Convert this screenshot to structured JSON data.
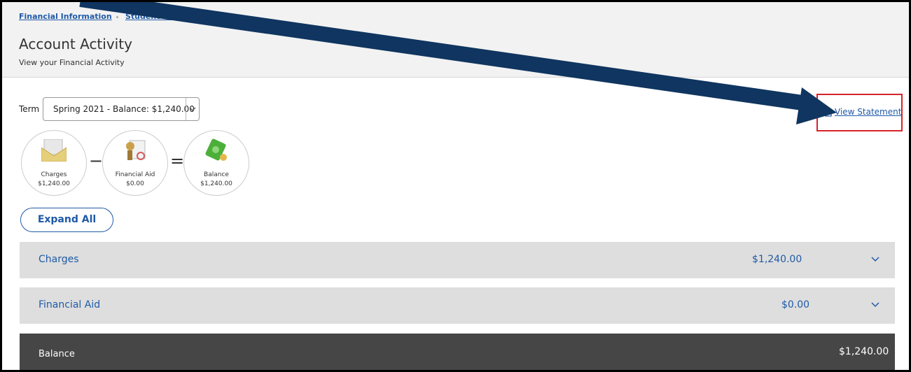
{
  "breadcrumb": [
    "Financial Information",
    "Student Finance"
  ],
  "header": {
    "title": "Account Activity",
    "subtitle": "View your Financial Activity"
  },
  "term": {
    "label": "Term",
    "selected": "Spring 2021 - Balance: $1,240.00"
  },
  "view_statement": "View Statement",
  "summary": {
    "items": [
      {
        "label": "Charges",
        "amount": "$1,240.00"
      },
      {
        "label": "Financial Aid",
        "amount": "$0.00"
      },
      {
        "label": "Balance",
        "amount": "$1,240.00"
      }
    ],
    "operators": [
      "−",
      "="
    ]
  },
  "expand_all": "Expand All",
  "sections": [
    {
      "label": "Charges",
      "amount": "$1,240.00"
    },
    {
      "label": "Financial Aid",
      "amount": "$0.00"
    },
    {
      "label": "Balance",
      "amount": "$1,240.00"
    }
  ]
}
